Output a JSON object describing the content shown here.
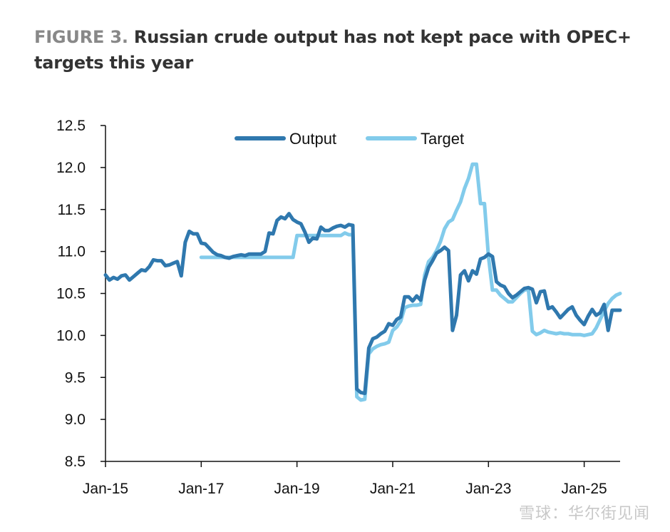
{
  "title": {
    "figure_label": "FIGURE 3.",
    "text": "Russian crude output has not kept pace with OPEC+ targets this year"
  },
  "watermark": "雪球：华尔街见闻",
  "colors": {
    "output": "#2f78ae",
    "target": "#82cbeb",
    "axis": "#111111"
  },
  "chart_data": {
    "type": "line",
    "title": "",
    "xlabel": "",
    "ylabel": "",
    "grid": false,
    "legend": "top-center",
    "ylim": [
      8.5,
      12.5
    ],
    "yticks": [
      "12.5",
      "12.0",
      "11.5",
      "11.0",
      "10.5",
      "10.0",
      "9.5",
      "9.0",
      "8.5"
    ],
    "x_range": [
      "2015-01",
      "2025-10"
    ],
    "xticks": [
      {
        "date": "2015-01",
        "label": "Jan-15"
      },
      {
        "date": "2017-01",
        "label": "Jan-17"
      },
      {
        "date": "2019-01",
        "label": "Jan-19"
      },
      {
        "date": "2021-01",
        "label": "Jan-21"
      },
      {
        "date": "2023-01",
        "label": "Jan-23"
      },
      {
        "date": "2025-01",
        "label": "Jan-25"
      }
    ],
    "series": [
      {
        "name": "Output",
        "points": [
          [
            "2015-01",
            10.72
          ],
          [
            "2015-02",
            10.66
          ],
          [
            "2015-03",
            10.69
          ],
          [
            "2015-04",
            10.67
          ],
          [
            "2015-05",
            10.71
          ],
          [
            "2015-06",
            10.72
          ],
          [
            "2015-07",
            10.66
          ],
          [
            "2015-08",
            10.7
          ],
          [
            "2015-09",
            10.74
          ],
          [
            "2015-10",
            10.78
          ],
          [
            "2015-11",
            10.77
          ],
          [
            "2015-12",
            10.82
          ],
          [
            "2016-01",
            10.9
          ],
          [
            "2016-02",
            10.89
          ],
          [
            "2016-03",
            10.89
          ],
          [
            "2016-04",
            10.83
          ],
          [
            "2016-05",
            10.84
          ],
          [
            "2016-06",
            10.86
          ],
          [
            "2016-07",
            10.88
          ],
          [
            "2016-08",
            10.71
          ],
          [
            "2016-09",
            11.11
          ],
          [
            "2016-10",
            11.24
          ],
          [
            "2016-11",
            11.21
          ],
          [
            "2016-12",
            11.21
          ],
          [
            "2017-01",
            11.1
          ],
          [
            "2017-02",
            11.09
          ],
          [
            "2017-03",
            11.04
          ],
          [
            "2017-04",
            10.99
          ],
          [
            "2017-05",
            10.96
          ],
          [
            "2017-06",
            10.95
          ],
          [
            "2017-07",
            10.93
          ],
          [
            "2017-08",
            10.92
          ],
          [
            "2017-09",
            10.94
          ],
          [
            "2017-10",
            10.95
          ],
          [
            "2017-11",
            10.96
          ],
          [
            "2017-12",
            10.95
          ],
          [
            "2018-01",
            10.97
          ],
          [
            "2018-02",
            10.97
          ],
          [
            "2018-03",
            10.97
          ],
          [
            "2018-04",
            10.97
          ],
          [
            "2018-05",
            11.0
          ],
          [
            "2018-06",
            11.22
          ],
          [
            "2018-07",
            11.21
          ],
          [
            "2018-08",
            11.37
          ],
          [
            "2018-09",
            11.41
          ],
          [
            "2018-10",
            11.39
          ],
          [
            "2018-11",
            11.45
          ],
          [
            "2018-12",
            11.38
          ],
          [
            "2019-01",
            11.35
          ],
          [
            "2019-02",
            11.33
          ],
          [
            "2019-03",
            11.23
          ],
          [
            "2019-04",
            11.11
          ],
          [
            "2019-05",
            11.16
          ],
          [
            "2019-06",
            11.15
          ],
          [
            "2019-07",
            11.29
          ],
          [
            "2019-08",
            11.25
          ],
          [
            "2019-09",
            11.25
          ],
          [
            "2019-10",
            11.28
          ],
          [
            "2019-11",
            11.3
          ],
          [
            "2019-12",
            11.31
          ],
          [
            "2020-01",
            11.29
          ],
          [
            "2020-02",
            11.32
          ],
          [
            "2020-03",
            11.31
          ],
          [
            "2020-04",
            9.36
          ],
          [
            "2020-05",
            9.32
          ],
          [
            "2020-06",
            9.31
          ],
          [
            "2020-07",
            9.85
          ],
          [
            "2020-08",
            9.96
          ],
          [
            "2020-09",
            9.98
          ],
          [
            "2020-10",
            10.02
          ],
          [
            "2020-11",
            10.05
          ],
          [
            "2020-12",
            10.14
          ],
          [
            "2021-01",
            10.12
          ],
          [
            "2021-02",
            10.19
          ],
          [
            "2021-03",
            10.22
          ],
          [
            "2021-04",
            10.46
          ],
          [
            "2021-05",
            10.46
          ],
          [
            "2021-06",
            10.41
          ],
          [
            "2021-07",
            10.47
          ],
          [
            "2021-08",
            10.42
          ],
          [
            "2021-09",
            10.66
          ],
          [
            "2021-10",
            10.81
          ],
          [
            "2021-11",
            10.89
          ],
          [
            "2021-12",
            10.98
          ],
          [
            "2022-01",
            11.01
          ],
          [
            "2022-02",
            11.05
          ],
          [
            "2022-03",
            11.01
          ],
          [
            "2022-04",
            10.06
          ],
          [
            "2022-05",
            10.24
          ],
          [
            "2022-06",
            10.72
          ],
          [
            "2022-07",
            10.77
          ],
          [
            "2022-08",
            10.65
          ],
          [
            "2022-09",
            10.77
          ],
          [
            "2022-10",
            10.73
          ],
          [
            "2022-11",
            10.91
          ],
          [
            "2022-12",
            10.93
          ],
          [
            "2023-01",
            10.97
          ],
          [
            "2023-02",
            10.94
          ],
          [
            "2023-03",
            10.64
          ],
          [
            "2023-04",
            10.6
          ],
          [
            "2023-05",
            10.58
          ],
          [
            "2023-06",
            10.5
          ],
          [
            "2023-07",
            10.45
          ],
          [
            "2023-08",
            10.48
          ],
          [
            "2023-09",
            10.52
          ],
          [
            "2023-10",
            10.56
          ],
          [
            "2023-11",
            10.57
          ],
          [
            "2023-12",
            10.55
          ],
          [
            "2024-01",
            10.39
          ],
          [
            "2024-02",
            10.52
          ],
          [
            "2024-03",
            10.53
          ],
          [
            "2024-04",
            10.32
          ],
          [
            "2024-05",
            10.34
          ],
          [
            "2024-06",
            10.28
          ],
          [
            "2024-07",
            10.21
          ],
          [
            "2024-08",
            10.26
          ],
          [
            "2024-09",
            10.31
          ],
          [
            "2024-10",
            10.34
          ],
          [
            "2024-11",
            10.24
          ],
          [
            "2024-12",
            10.18
          ],
          [
            "2025-01",
            10.13
          ],
          [
            "2025-02",
            10.23
          ],
          [
            "2025-03",
            10.31
          ],
          [
            "2025-04",
            10.24
          ],
          [
            "2025-05",
            10.27
          ],
          [
            "2025-06",
            10.37
          ],
          [
            "2025-07",
            10.06
          ],
          [
            "2025-08",
            10.3
          ],
          [
            "2025-09",
            10.3
          ],
          [
            "2025-10",
            10.3
          ]
        ]
      },
      {
        "name": "Target",
        "points": [
          [
            "2017-01",
            10.93
          ],
          [
            "2017-06",
            10.93
          ],
          [
            "2017-12",
            10.93
          ],
          [
            "2018-06",
            10.93
          ],
          [
            "2018-12",
            10.93
          ],
          [
            "2019-01",
            11.19
          ],
          [
            "2019-06",
            11.19
          ],
          [
            "2019-12",
            11.19
          ],
          [
            "2020-01",
            11.22
          ],
          [
            "2020-02",
            11.2
          ],
          [
            "2020-03",
            11.2
          ],
          [
            "2020-04",
            9.27
          ],
          [
            "2020-05",
            9.23
          ],
          [
            "2020-06",
            9.24
          ],
          [
            "2020-07",
            9.78
          ],
          [
            "2020-08",
            9.84
          ],
          [
            "2020-09",
            9.87
          ],
          [
            "2020-10",
            9.89
          ],
          [
            "2020-11",
            9.9
          ],
          [
            "2020-12",
            9.92
          ],
          [
            "2021-01",
            10.06
          ],
          [
            "2021-02",
            10.1
          ],
          [
            "2021-03",
            10.17
          ],
          [
            "2021-04",
            10.33
          ],
          [
            "2021-05",
            10.35
          ],
          [
            "2021-06",
            10.36
          ],
          [
            "2021-07",
            10.36
          ],
          [
            "2021-08",
            10.37
          ],
          [
            "2021-09",
            10.72
          ],
          [
            "2021-10",
            10.88
          ],
          [
            "2021-11",
            10.93
          ],
          [
            "2021-12",
            11.01
          ],
          [
            "2022-01",
            11.12
          ],
          [
            "2022-02",
            11.27
          ],
          [
            "2022-03",
            11.35
          ],
          [
            "2022-04",
            11.38
          ],
          [
            "2022-05",
            11.49
          ],
          [
            "2022-06",
            11.59
          ],
          [
            "2022-07",
            11.75
          ],
          [
            "2022-08",
            11.87
          ],
          [
            "2022-09",
            12.04
          ],
          [
            "2022-10",
            12.04
          ],
          [
            "2022-11",
            11.57
          ],
          [
            "2022-12",
            11.57
          ],
          [
            "2023-01",
            10.94
          ],
          [
            "2023-02",
            10.54
          ],
          [
            "2023-03",
            10.54
          ],
          [
            "2023-04",
            10.48
          ],
          [
            "2023-05",
            10.44
          ],
          [
            "2023-06",
            10.4
          ],
          [
            "2023-07",
            10.4
          ],
          [
            "2023-08",
            10.45
          ],
          [
            "2023-09",
            10.5
          ],
          [
            "2023-10",
            10.54
          ],
          [
            "2023-11",
            10.55
          ],
          [
            "2023-12",
            10.05
          ],
          [
            "2024-01",
            10.01
          ],
          [
            "2024-02",
            10.03
          ],
          [
            "2024-03",
            10.06
          ],
          [
            "2024-04",
            10.04
          ],
          [
            "2024-05",
            10.03
          ],
          [
            "2024-06",
            10.02
          ],
          [
            "2024-07",
            10.03
          ],
          [
            "2024-08",
            10.02
          ],
          [
            "2024-09",
            10.02
          ],
          [
            "2024-10",
            10.01
          ],
          [
            "2024-11",
            10.01
          ],
          [
            "2024-12",
            10.01
          ],
          [
            "2025-01",
            10.0
          ],
          [
            "2025-02",
            10.01
          ],
          [
            "2025-03",
            10.02
          ],
          [
            "2025-04",
            10.09
          ],
          [
            "2025-05",
            10.19
          ],
          [
            "2025-06",
            10.29
          ],
          [
            "2025-07",
            10.38
          ],
          [
            "2025-08",
            10.44
          ],
          [
            "2025-09",
            10.48
          ],
          [
            "2025-10",
            10.5
          ]
        ]
      }
    ]
  }
}
